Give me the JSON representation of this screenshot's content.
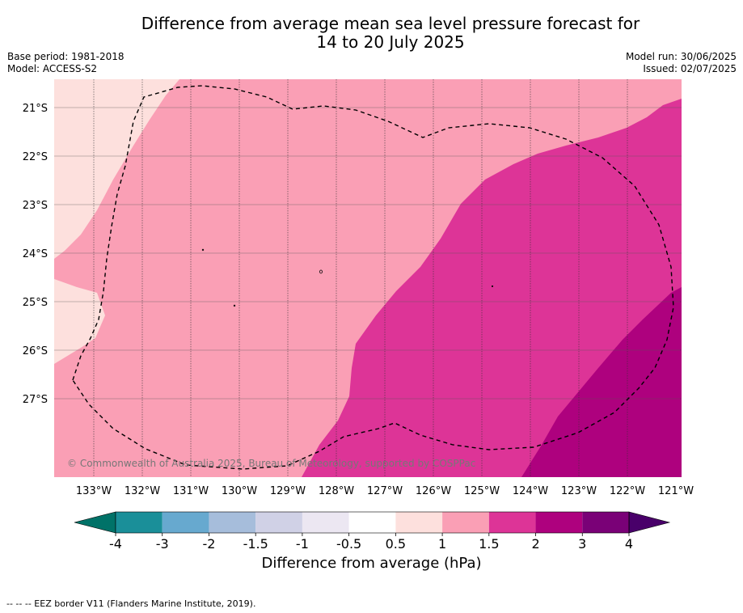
{
  "title_line1": "Difference from average mean sea level pressure forecast for",
  "title_line2": "14 to 20 July 2025",
  "base_period": "Base period: 1981-2018",
  "model": "Model: ACCESS-S2",
  "model_run": "Model run: 30/06/2025",
  "issued": "Issued: 02/07/2025",
  "copyright": "© Commonwealth of Australia 2025, Bureau of Meteorology, supported by COSPPac",
  "lon_labels": [
    "133°W",
    "132°W",
    "131°W",
    "130°W",
    "129°W",
    "128°W",
    "127°W",
    "126°W",
    "125°W",
    "124°W",
    "123°W",
    "122°W",
    "121°W"
  ],
  "lat_labels": [
    "21°S",
    "22°S",
    "23°S",
    "24°S",
    "25°S",
    "26°S",
    "27°S"
  ],
  "colorbar": {
    "label": "Difference from average (hPa)",
    "ticks": [
      "-4",
      "-3",
      "-2",
      "-1.5",
      "-1",
      "-0.5",
      "0.5",
      "1",
      "1.5",
      "2",
      "3",
      "4"
    ],
    "colors": [
      "#007268",
      "#1a8f99",
      "#67a9cf",
      "#a6bddb",
      "#d0d1e6",
      "#ece7f2",
      "#ffffff",
      "#fde0dd",
      "#fa9fb5",
      "#dd3497",
      "#ae017e",
      "#7a0177",
      "#49006a"
    ]
  },
  "legend_note": "--  --  -- EEZ border V11 (Flanders Marine Institute, 2019)."
}
